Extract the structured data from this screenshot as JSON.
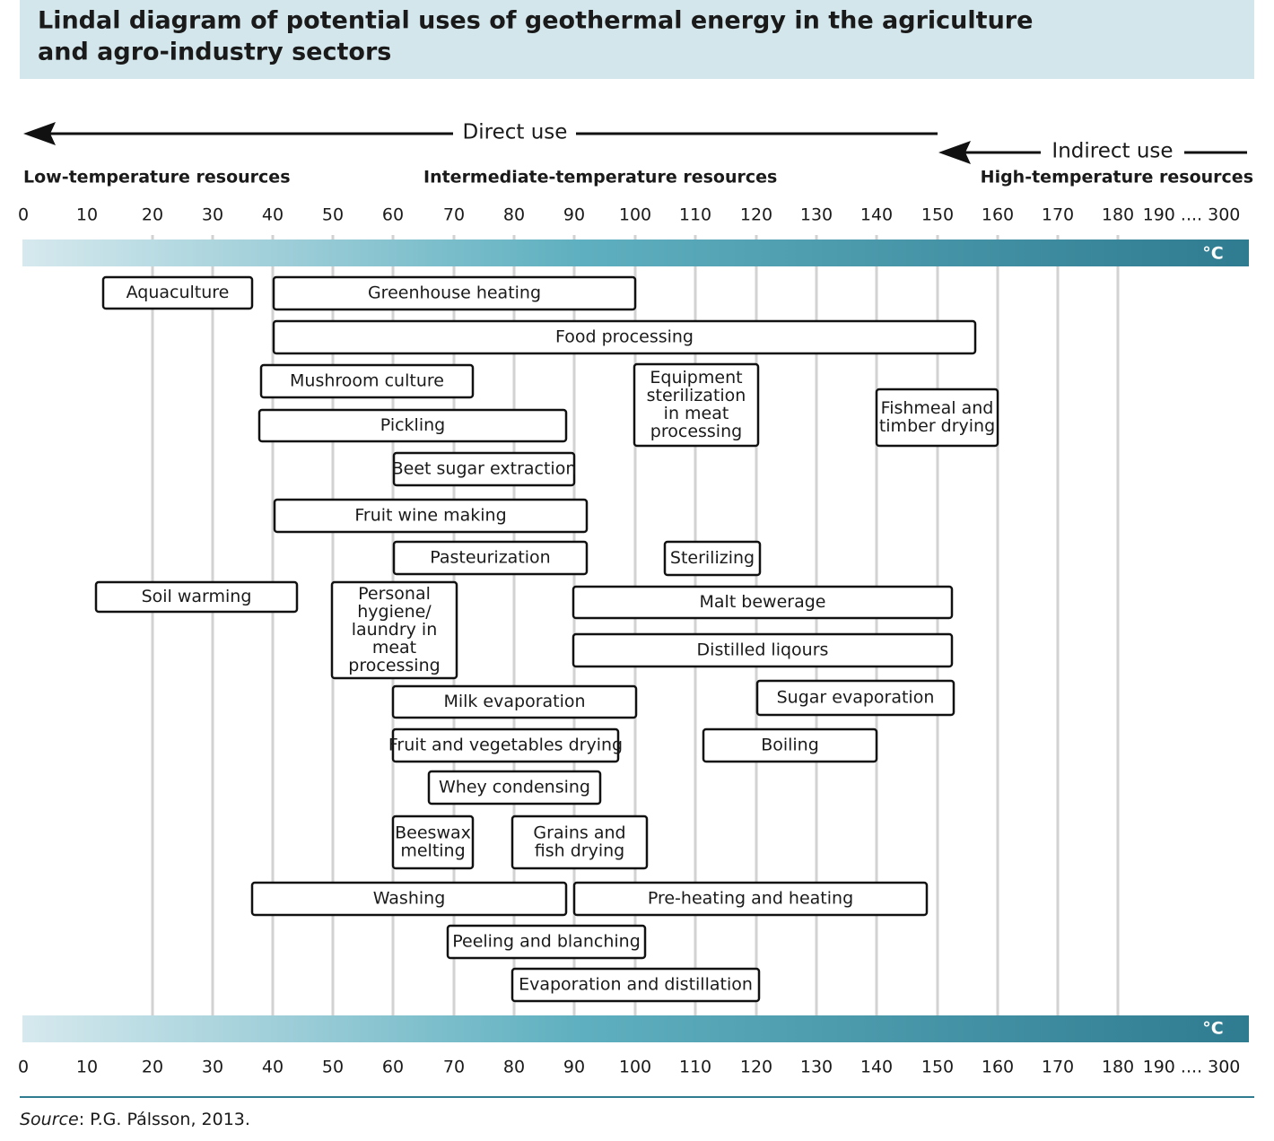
{
  "header": {
    "title_lines": [
      "Lindal diagram of potential uses of geothermal energy in the agriculture",
      "and agro-industry sectors"
    ]
  },
  "arrows": {
    "direct": "Direct use",
    "indirect": "Indirect use"
  },
  "resources": {
    "low": "Low-temperature resources",
    "intermediate": "Intermediate-temperature resources",
    "high": "High-temperature resources"
  },
  "scale": {
    "ticks": [
      "0",
      "10",
      "20",
      "30",
      "40",
      "50",
      "60",
      "70",
      "80",
      "90",
      "100",
      "110",
      "120",
      "130",
      "140",
      "150",
      "160",
      "170",
      "180",
      "190 .... 300"
    ],
    "unit": "°C"
  },
  "boxes": [
    {
      "lines": [
        "Aquaculture"
      ]
    },
    {
      "lines": [
        "Greenhouse heating"
      ]
    },
    {
      "lines": [
        "Food processing"
      ]
    },
    {
      "lines": [
        "Mushroom culture"
      ]
    },
    {
      "lines": [
        "Equipment",
        "sterilization",
        "in meat",
        "processing"
      ]
    },
    {
      "lines": [
        "Fishmeal and",
        "timber drying"
      ]
    },
    {
      "lines": [
        "Pickling"
      ]
    },
    {
      "lines": [
        "Beet sugar extraction"
      ]
    },
    {
      "lines": [
        "Fruit wine making"
      ]
    },
    {
      "lines": [
        "Pasteurization"
      ]
    },
    {
      "lines": [
        "Sterilizing"
      ]
    },
    {
      "lines": [
        "Soil warming"
      ]
    },
    {
      "lines": [
        "Personal",
        "hygiene/",
        "laundry in",
        "meat",
        "processing"
      ]
    },
    {
      "lines": [
        "Malt bewerage"
      ]
    },
    {
      "lines": [
        "Distilled liqours"
      ]
    },
    {
      "lines": [
        "Milk evaporation"
      ]
    },
    {
      "lines": [
        "Sugar evaporation"
      ]
    },
    {
      "lines": [
        "Fruit and vegetables drying"
      ]
    },
    {
      "lines": [
        "Boiling"
      ]
    },
    {
      "lines": [
        "Whey condensing"
      ]
    },
    {
      "lines": [
        "Beeswax",
        "melting"
      ]
    },
    {
      "lines": [
        "Grains and",
        "fish drying"
      ]
    },
    {
      "lines": [
        "Washing"
      ]
    },
    {
      "lines": [
        "Pre-heating and heating"
      ]
    },
    {
      "lines": [
        "Peeling and blanching"
      ]
    },
    {
      "lines": [
        "Evaporation and distillation"
      ]
    }
  ],
  "footer": {
    "source_label": "Source",
    "source_text": ": P.G. Pálsson, 2013."
  }
}
